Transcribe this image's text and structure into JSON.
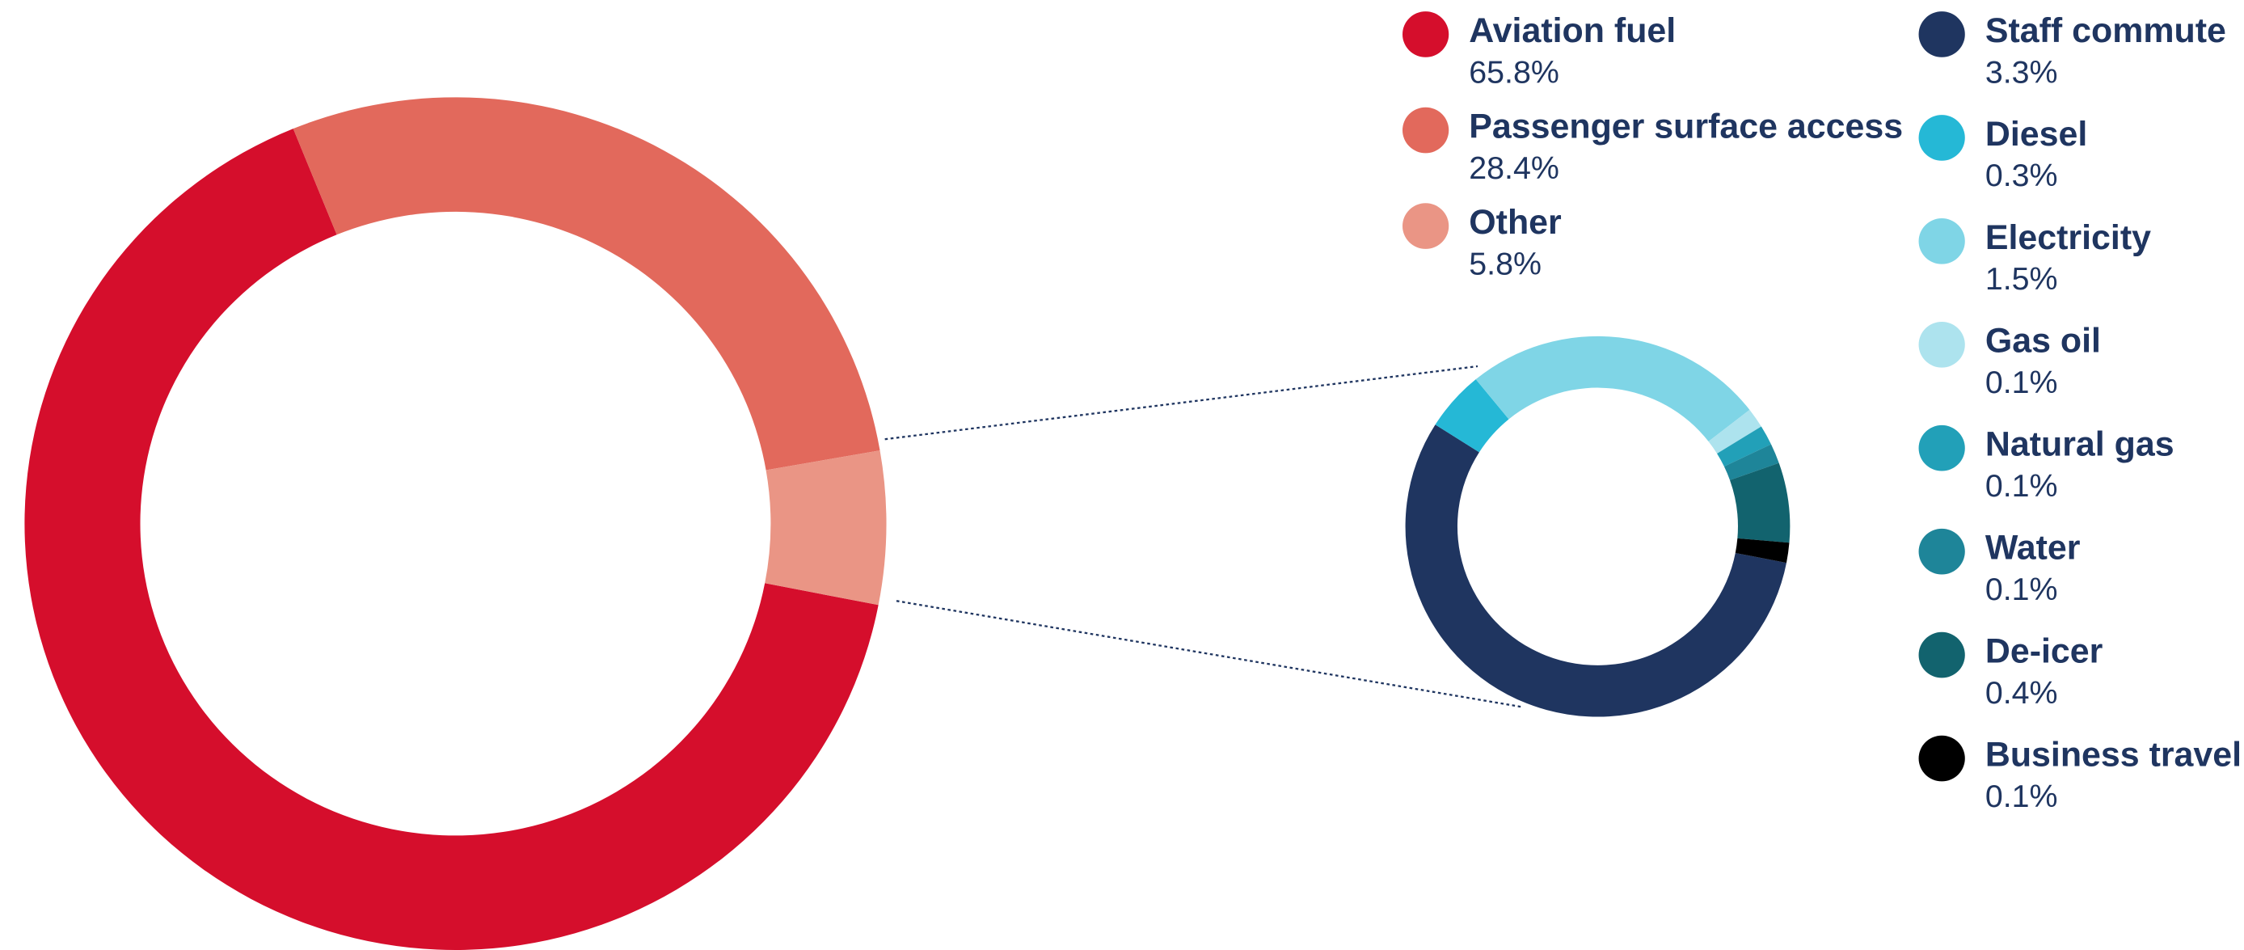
{
  "chart_data": [
    {
      "type": "donut",
      "categories": [
        "Aviation fuel",
        "Passenger surface access",
        "Other"
      ],
      "values": [
        65.8,
        28.4,
        5.8
      ],
      "value_labels": [
        "65.8%",
        "28.4%",
        "5.8%"
      ],
      "colors": [
        "#d50e2c",
        "#e2695c",
        "#ea9585"
      ]
    },
    {
      "type": "donut",
      "categories": [
        "Staff commute",
        "Diesel",
        "Electricity",
        "Gas oil",
        "Natural gas",
        "Water",
        "De-icer",
        "Business travel"
      ],
      "values": [
        3.3,
        0.3,
        1.5,
        0.1,
        0.1,
        0.1,
        0.4,
        0.1
      ],
      "value_labels": [
        "3.3%",
        "0.3%",
        "1.5%",
        "0.1%",
        "0.1%",
        "0.1%",
        "0.4%",
        "0.1%"
      ],
      "colors": [
        "#1f3560",
        "#25b8d6",
        "#7fd5e6",
        "#ade3ee",
        "#22a0b8",
        "#1e8599",
        "#12636e",
        "#000000"
      ]
    }
  ]
}
